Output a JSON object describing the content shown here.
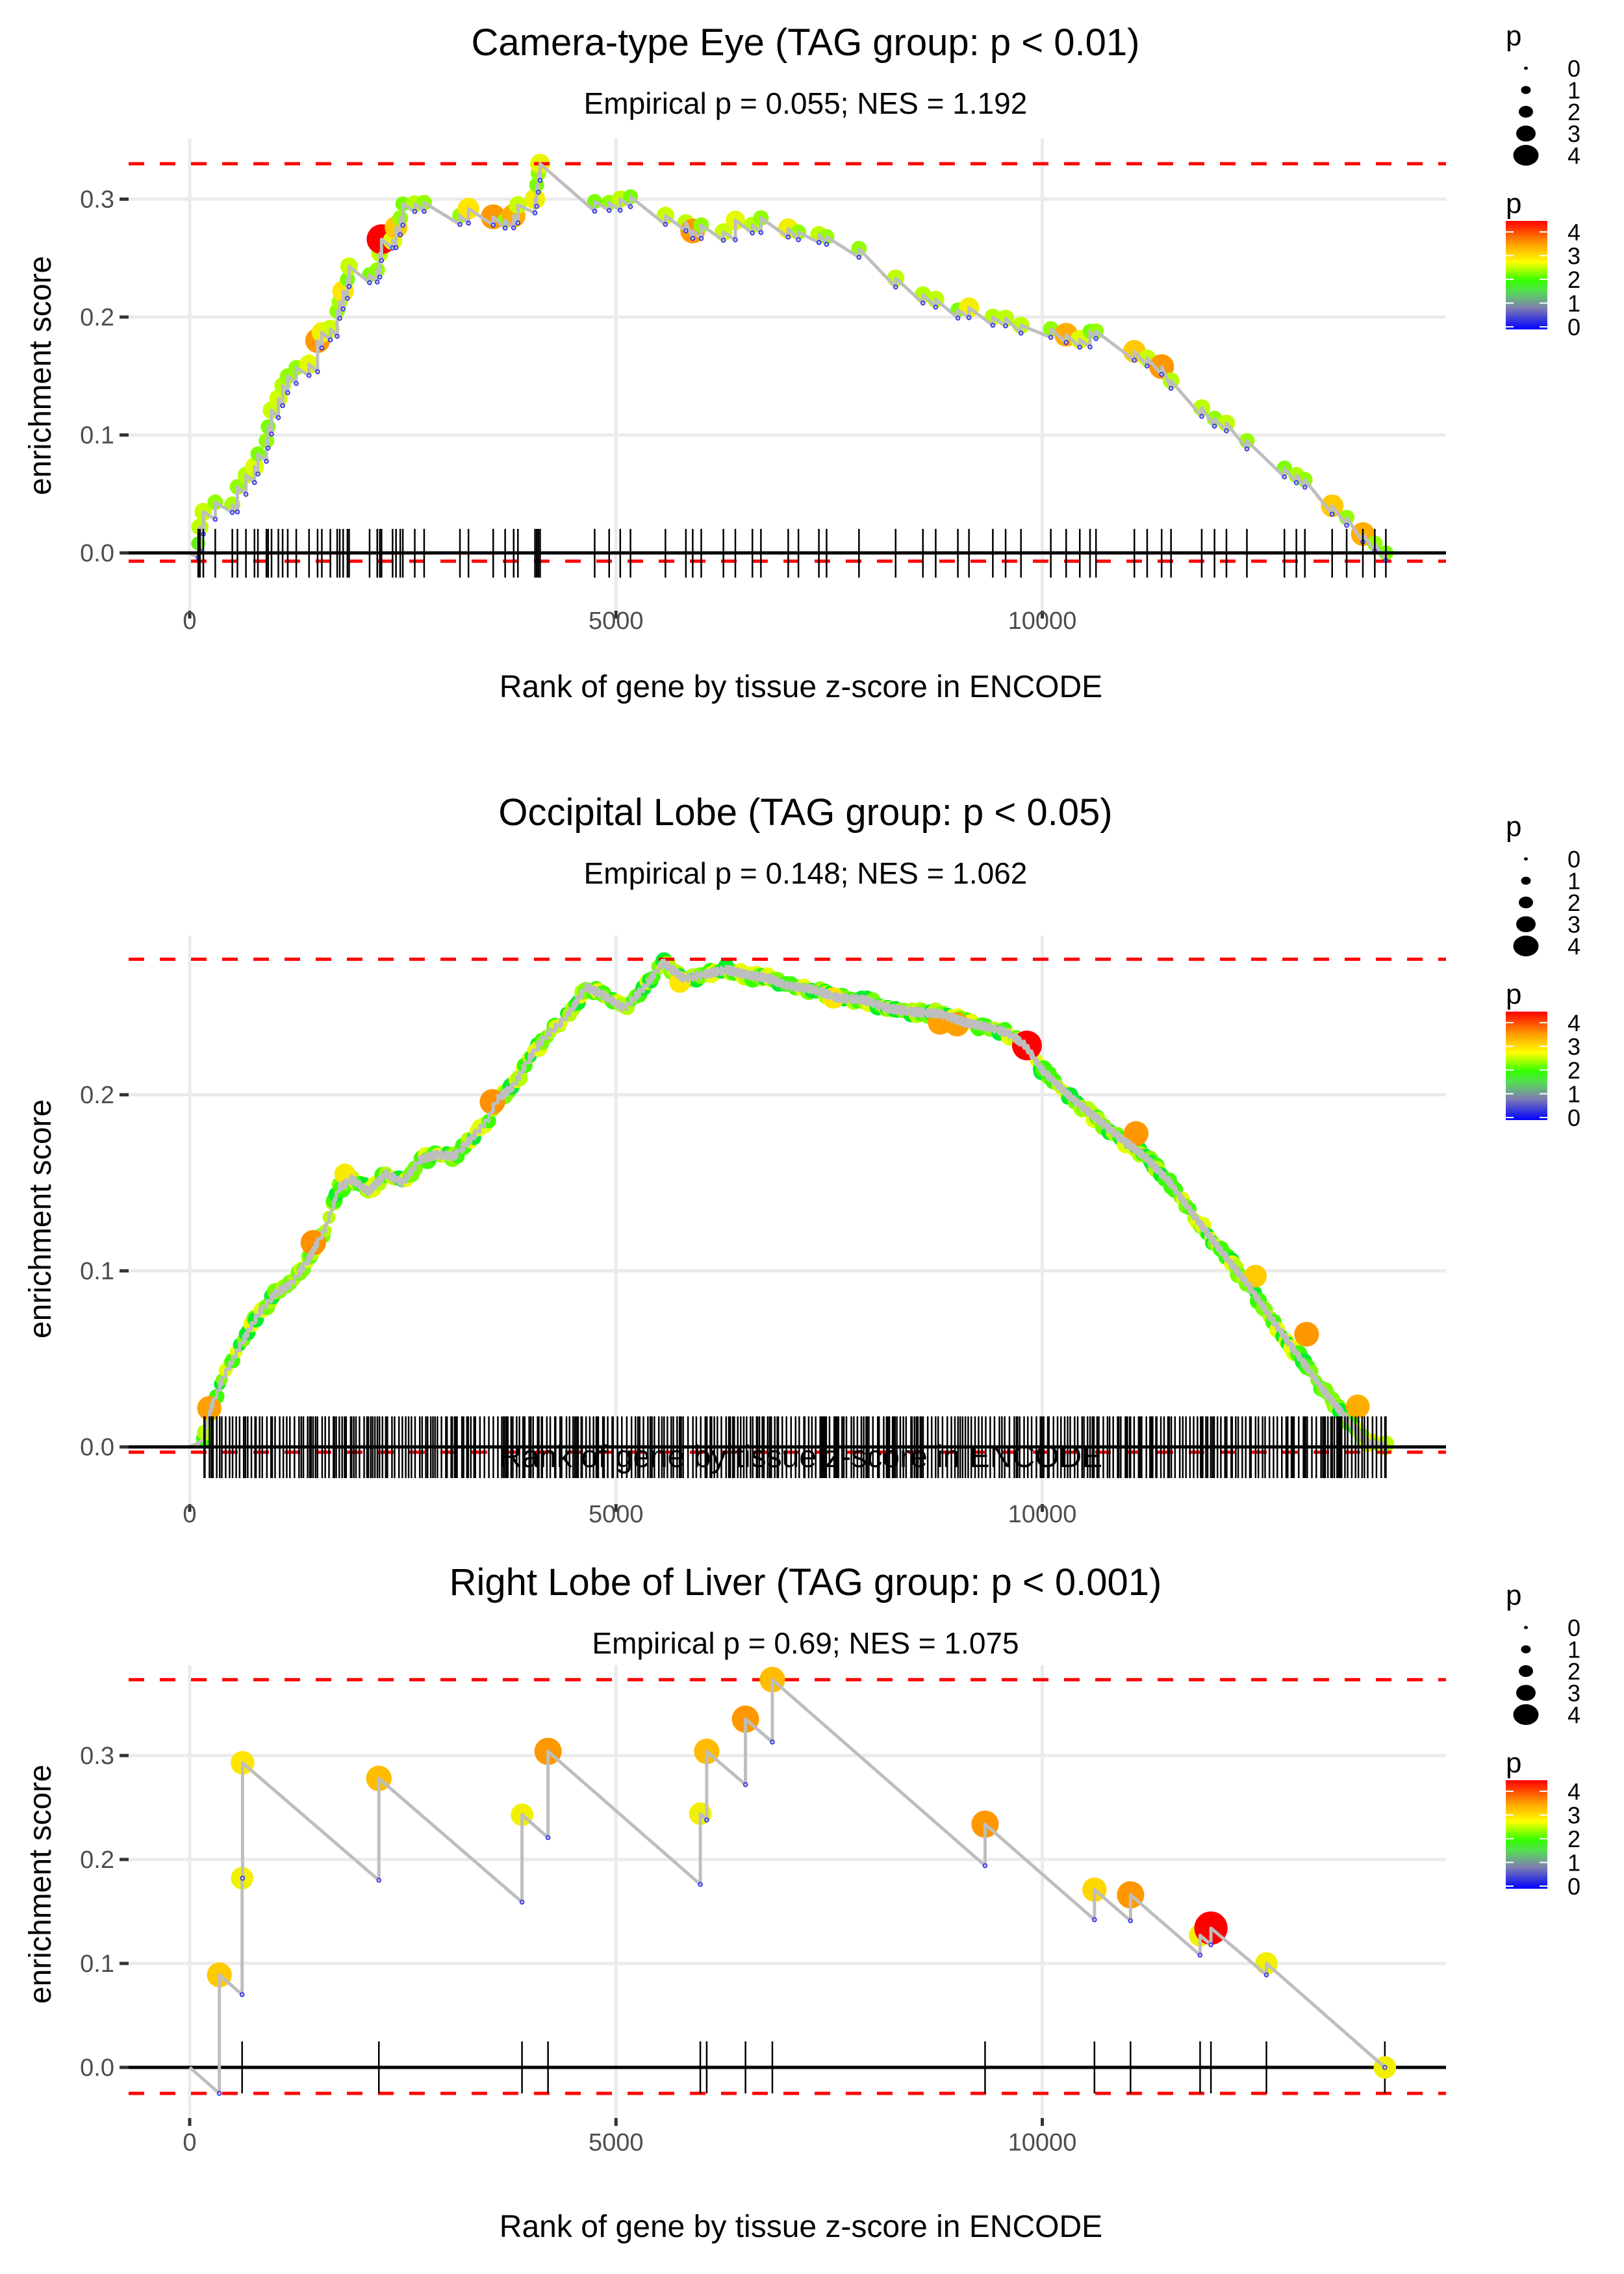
{
  "chart_data": [
    {
      "type": "line",
      "title": "Camera-type Eye (TAG group: p < 0.01)",
      "subtitle": "Empirical p = 0.055; NES = 1.192",
      "xlabel": "Rank of gene by tissue z-score in ENCODE",
      "ylabel": "enrichment score",
      "xlim": [
        -700,
        14700
      ],
      "ylim": [
        -0.025,
        0.345
      ],
      "xticks": [
        0,
        5000,
        10000
      ],
      "xtick_labels": [
        "0",
        "5000",
        "10000"
      ],
      "yticks": [
        0.0,
        0.1,
        0.2,
        0.3
      ],
      "ytick_labels": [
        "0.0",
        "0.1",
        "0.2",
        "0.3"
      ],
      "grid": true,
      "max_es_line": 0.33,
      "min_es_line": -0.007,
      "zero_line": 0,
      "n_genes": 14030,
      "hits": [
        {
          "rank": 100,
          "es": 0.008,
          "p": 1.6
        },
        {
          "rank": 120,
          "es": 0.022,
          "p": 2.2
        },
        {
          "rank": 160,
          "es": 0.035,
          "p": 2.3
        },
        {
          "rank": 300,
          "es": 0.043,
          "p": 1.9
        },
        {
          "rank": 500,
          "es": 0.041,
          "p": 2.0
        },
        {
          "rank": 560,
          "es": 0.056,
          "p": 1.9
        },
        {
          "rank": 660,
          "es": 0.066,
          "p": 2.1
        },
        {
          "rank": 760,
          "es": 0.073,
          "p": 2.5
        },
        {
          "rank": 800,
          "es": 0.084,
          "p": 1.8
        },
        {
          "rank": 900,
          "es": 0.095,
          "p": 1.9
        },
        {
          "rank": 920,
          "es": 0.107,
          "p": 1.8
        },
        {
          "rank": 960,
          "es": 0.121,
          "p": 2.3
        },
        {
          "rank": 1040,
          "es": 0.131,
          "p": 2.4
        },
        {
          "rank": 1090,
          "es": 0.142,
          "p": 2.1
        },
        {
          "rank": 1150,
          "es": 0.15,
          "p": 1.9
        },
        {
          "rank": 1250,
          "es": 0.157,
          "p": 1.9
        },
        {
          "rank": 1400,
          "es": 0.16,
          "p": 2.6
        },
        {
          "rank": 1500,
          "es": 0.18,
          "p": 3.6
        },
        {
          "rank": 1550,
          "es": 0.187,
          "p": 2.8
        },
        {
          "rank": 1650,
          "es": 0.19,
          "p": 2.4
        },
        {
          "rank": 1730,
          "es": 0.205,
          "p": 1.9
        },
        {
          "rank": 1760,
          "es": 0.213,
          "p": 2.0
        },
        {
          "rank": 1800,
          "es": 0.222,
          "p": 3.0
        },
        {
          "rank": 1850,
          "es": 0.232,
          "p": 1.8
        },
        {
          "rank": 1870,
          "es": 0.243,
          "p": 2.3
        },
        {
          "rank": 2110,
          "es": 0.236,
          "p": 1.8
        },
        {
          "rank": 2200,
          "es": 0.24,
          "p": 1.9
        },
        {
          "rank": 2230,
          "es": 0.254,
          "p": 2.2
        },
        {
          "rank": 2250,
          "es": 0.266,
          "p": 4.5
        },
        {
          "rank": 2380,
          "es": 0.265,
          "p": 2.6
        },
        {
          "rank": 2420,
          "es": 0.276,
          "p": 3.2
        },
        {
          "rank": 2470,
          "es": 0.284,
          "p": 1.9
        },
        {
          "rank": 2500,
          "es": 0.296,
          "p": 1.8
        },
        {
          "rank": 2640,
          "es": 0.296,
          "p": 2.2
        },
        {
          "rank": 2750,
          "es": 0.297,
          "p": 1.9
        },
        {
          "rank": 3170,
          "es": 0.286,
          "p": 1.9
        },
        {
          "rank": 3270,
          "es": 0.292,
          "p": 3.0
        },
        {
          "rank": 3560,
          "es": 0.285,
          "p": 3.6
        },
        {
          "rank": 3700,
          "es": 0.282,
          "p": 1.9
        },
        {
          "rank": 3800,
          "es": 0.286,
          "p": 3.4
        },
        {
          "rank": 3850,
          "es": 0.295,
          "p": 2.3
        },
        {
          "rank": 4050,
          "es": 0.3,
          "p": 2.8
        },
        {
          "rank": 4070,
          "es": 0.312,
          "p": 1.8
        },
        {
          "rank": 4090,
          "es": 0.322,
          "p": 1.9
        },
        {
          "rank": 4110,
          "es": 0.33,
          "p": 2.7
        },
        {
          "rank": 4750,
          "es": 0.298,
          "p": 1.8
        },
        {
          "rank": 4920,
          "es": 0.297,
          "p": 1.9
        },
        {
          "rank": 5050,
          "es": 0.3,
          "p": 2.2
        },
        {
          "rank": 5170,
          "es": 0.302,
          "p": 1.8
        },
        {
          "rank": 5580,
          "es": 0.286,
          "p": 2.3
        },
        {
          "rank": 5820,
          "es": 0.28,
          "p": 2.2
        },
        {
          "rank": 5900,
          "es": 0.273,
          "p": 3.6
        },
        {
          "rank": 6000,
          "es": 0.278,
          "p": 1.9
        },
        {
          "rank": 6260,
          "es": 0.272,
          "p": 2.3
        },
        {
          "rank": 6400,
          "es": 0.282,
          "p": 2.6
        },
        {
          "rank": 6600,
          "es": 0.278,
          "p": 2.1
        },
        {
          "rank": 6700,
          "es": 0.284,
          "p": 1.9
        },
        {
          "rank": 7020,
          "es": 0.275,
          "p": 2.8
        },
        {
          "rank": 7140,
          "es": 0.272,
          "p": 1.9
        },
        {
          "rank": 7380,
          "es": 0.27,
          "p": 2.2
        },
        {
          "rank": 7470,
          "es": 0.268,
          "p": 1.9
        },
        {
          "rank": 7850,
          "es": 0.258,
          "p": 1.9
        },
        {
          "rank": 8280,
          "es": 0.233,
          "p": 2.2
        },
        {
          "rank": 8600,
          "es": 0.219,
          "p": 2.1
        },
        {
          "rank": 8750,
          "es": 0.215,
          "p": 2.2
        },
        {
          "rank": 9010,
          "es": 0.206,
          "p": 1.8
        },
        {
          "rank": 9140,
          "es": 0.208,
          "p": 2.8
        },
        {
          "rank": 9420,
          "es": 0.2,
          "p": 2.1
        },
        {
          "rank": 9570,
          "es": 0.199,
          "p": 2.2
        },
        {
          "rank": 9750,
          "es": 0.193,
          "p": 2.2
        },
        {
          "rank": 10100,
          "es": 0.19,
          "p": 1.9
        },
        {
          "rank": 10280,
          "es": 0.185,
          "p": 3.4
        },
        {
          "rank": 10440,
          "es": 0.181,
          "p": 2.5
        },
        {
          "rank": 10560,
          "es": 0.188,
          "p": 1.8
        },
        {
          "rank": 10630,
          "es": 0.188,
          "p": 1.9
        },
        {
          "rank": 11080,
          "es": 0.171,
          "p": 3.2
        },
        {
          "rank": 11230,
          "es": 0.165,
          "p": 2.3
        },
        {
          "rank": 11400,
          "es": 0.158,
          "p": 3.6
        },
        {
          "rank": 11510,
          "es": 0.146,
          "p": 2.1
        },
        {
          "rank": 11870,
          "es": 0.123,
          "p": 2.2
        },
        {
          "rank": 12020,
          "es": 0.114,
          "p": 1.9
        },
        {
          "rank": 12160,
          "es": 0.11,
          "p": 2.2
        },
        {
          "rank": 12400,
          "es": 0.095,
          "p": 1.9
        },
        {
          "rank": 12840,
          "es": 0.072,
          "p": 1.8
        },
        {
          "rank": 12980,
          "es": 0.066,
          "p": 2.0
        },
        {
          "rank": 13080,
          "es": 0.062,
          "p": 1.9
        },
        {
          "rank": 13400,
          "es": 0.04,
          "p": 3.2
        },
        {
          "rank": 13570,
          "es": 0.03,
          "p": 1.9
        },
        {
          "rank": 13760,
          "es": 0.016,
          "p": 3.4
        },
        {
          "rank": 13900,
          "es": 0.008,
          "p": 1.9
        },
        {
          "rank": 14030,
          "es": 0.0,
          "p": 1.8
        }
      ]
    },
    {
      "type": "line",
      "title": "Occipital Lobe (TAG group: p < 0.05)",
      "subtitle": "Empirical p = 0.148; NES = 1.062",
      "xlabel": "Rank of gene by tissue z-score in ENCODE",
      "ylabel": "enrichment score",
      "xlim": [
        -700,
        14700
      ],
      "ylim": [
        -0.015,
        0.29
      ],
      "xticks": [
        0,
        5000,
        10000
      ],
      "xtick_labels": [
        "0",
        "5000",
        "10000"
      ],
      "yticks": [
        0.0,
        0.1,
        0.2
      ],
      "ytick_labels": [
        "0.0",
        "0.1",
        "0.2"
      ],
      "grid": true,
      "max_es_line": 0.277,
      "min_es_line": -0.003,
      "zero_line": 0,
      "n_genes": 14030,
      "curve": [
        [
          0,
          0.0
        ],
        [
          150,
          0.002
        ],
        [
          250,
          0.022
        ],
        [
          400,
          0.04
        ],
        [
          600,
          0.058
        ],
        [
          800,
          0.075
        ],
        [
          1000,
          0.087
        ],
        [
          1200,
          0.093
        ],
        [
          1400,
          0.107
        ],
        [
          1600,
          0.125
        ],
        [
          1750,
          0.147
        ],
        [
          1900,
          0.152
        ],
        [
          2100,
          0.145
        ],
        [
          2300,
          0.155
        ],
        [
          2500,
          0.15
        ],
        [
          2700,
          0.163
        ],
        [
          2900,
          0.166
        ],
        [
          3100,
          0.165
        ],
        [
          3300,
          0.175
        ],
        [
          3500,
          0.186
        ],
        [
          3600,
          0.197
        ],
        [
          3800,
          0.205
        ],
        [
          3950,
          0.218
        ],
        [
          4150,
          0.232
        ],
        [
          4400,
          0.243
        ],
        [
          4650,
          0.261
        ],
        [
          4800,
          0.258
        ],
        [
          5100,
          0.249
        ],
        [
          5350,
          0.262
        ],
        [
          5550,
          0.275
        ],
        [
          5800,
          0.266
        ],
        [
          6000,
          0.268
        ],
        [
          6300,
          0.271
        ],
        [
          6550,
          0.268
        ],
        [
          6800,
          0.266
        ],
        [
          7000,
          0.262
        ],
        [
          7300,
          0.26
        ],
        [
          7600,
          0.255
        ],
        [
          7900,
          0.254
        ],
        [
          8200,
          0.249
        ],
        [
          8500,
          0.247
        ],
        [
          8800,
          0.246
        ],
        [
          9100,
          0.241
        ],
        [
          9400,
          0.238
        ],
        [
          9600,
          0.235
        ],
        [
          9800,
          0.228
        ],
        [
          10000,
          0.214
        ],
        [
          10300,
          0.2
        ],
        [
          10600,
          0.188
        ],
        [
          10900,
          0.176
        ],
        [
          11200,
          0.165
        ],
        [
          11500,
          0.15
        ],
        [
          11800,
          0.13
        ],
        [
          12100,
          0.111
        ],
        [
          12400,
          0.093
        ],
        [
          12700,
          0.072
        ],
        [
          13000,
          0.052
        ],
        [
          13300,
          0.032
        ],
        [
          13600,
          0.014
        ],
        [
          13800,
          0.003
        ],
        [
          14030,
          0.0
        ]
      ],
      "highlight_points": [
        {
          "rank": 230,
          "es": 0.022,
          "p": 3.5
        },
        {
          "rank": 1450,
          "es": 0.116,
          "p": 3.7
        },
        {
          "rank": 1820,
          "es": 0.155,
          "p": 2.9
        },
        {
          "rank": 3550,
          "es": 0.196,
          "p": 3.7
        },
        {
          "rank": 5750,
          "es": 0.264,
          "p": 3.0
        },
        {
          "rank": 7550,
          "es": 0.255,
          "p": 3.0
        },
        {
          "rank": 8800,
          "es": 0.241,
          "p": 3.5
        },
        {
          "rank": 9000,
          "es": 0.24,
          "p": 3.5
        },
        {
          "rank": 9820,
          "es": 0.228,
          "p": 4.5
        },
        {
          "rank": 11100,
          "es": 0.178,
          "p": 3.6
        },
        {
          "rank": 12500,
          "es": 0.097,
          "p": 3.2
        },
        {
          "rank": 13100,
          "es": 0.064,
          "p": 3.6
        },
        {
          "rank": 13700,
          "es": 0.023,
          "p": 3.4
        }
      ],
      "hit_density": "dense rug of several hundred gene hits spanning ranks 150 to 14030"
    },
    {
      "type": "line",
      "title": "Right Lobe of Liver (TAG group: p < 0.001)",
      "subtitle": "Empirical p = 0.69; NES = 1.075",
      "xlabel": "Rank of gene by tissue z-score in ENCODE",
      "ylabel": "enrichment score",
      "xlim": [
        -700,
        14700
      ],
      "ylim": [
        -0.045,
        0.39
      ],
      "xticks": [
        0,
        5000,
        10000
      ],
      "xtick_labels": [
        "0",
        "5000",
        "10000"
      ],
      "yticks": [
        0.0,
        0.1,
        0.2,
        0.3
      ],
      "ytick_labels": [
        "0.0",
        "0.1",
        "0.2",
        "0.3"
      ],
      "grid": true,
      "max_es_line": 0.373,
      "min_es_line": -0.025,
      "zero_line": 0,
      "n_genes": 14018,
      "hits": [
        {
          "rank": 348,
          "before": -0.025,
          "es": 0.089,
          "p": 3.2
        },
        {
          "rank": 615,
          "before": 0.07,
          "es": 0.182,
          "p": 2.8
        },
        {
          "rank": 620,
          "before": 0.182,
          "es": 0.293,
          "p": 3.0
        },
        {
          "rank": 2219,
          "before": 0.18,
          "es": 0.278,
          "p": 3.3
        },
        {
          "rank": 3898,
          "before": 0.159,
          "es": 0.243,
          "p": 2.8
        },
        {
          "rank": 4203,
          "before": 0.221,
          "es": 0.304,
          "p": 3.6
        },
        {
          "rank": 5989,
          "before": 0.176,
          "es": 0.244,
          "p": 2.8
        },
        {
          "rank": 6064,
          "before": 0.238,
          "es": 0.304,
          "p": 3.3
        },
        {
          "rank": 6519,
          "before": 0.272,
          "es": 0.335,
          "p": 3.6
        },
        {
          "rank": 6834,
          "before": 0.313,
          "es": 0.373,
          "p": 3.3
        },
        {
          "rank": 9329,
          "before": 0.194,
          "es": 0.234,
          "p": 3.6
        },
        {
          "rank": 10612,
          "before": 0.142,
          "es": 0.171,
          "p": 3.1
        },
        {
          "rank": 11035,
          "before": 0.141,
          "es": 0.166,
          "p": 3.6
        },
        {
          "rank": 11851,
          "before": 0.108,
          "es": 0.127,
          "p": 2.8
        },
        {
          "rank": 11978,
          "before": 0.118,
          "es": 0.134,
          "p": 4.6
        },
        {
          "rank": 12629,
          "before": 0.089,
          "es": 0.1,
          "p": 2.8
        },
        {
          "rank": 14018,
          "before": 0.0,
          "es": 0.0,
          "p": 2.8
        }
      ]
    }
  ],
  "legend": {
    "size_title": "p",
    "size_labels": [
      "0",
      "1",
      "2",
      "3",
      "4"
    ],
    "color_title": "p",
    "color_labels": [
      "4",
      "3",
      "2",
      "1",
      "0"
    ],
    "color_scale": [
      "#0000ff",
      "#7f7fb0",
      "#33ff00",
      "#ffff00",
      "#ffa500",
      "#ff0000"
    ]
  },
  "colors": {
    "threshold_line": "#ff0000",
    "curve": "#bebebe",
    "grid": "#ebebeb",
    "zero_line": "#000000"
  }
}
